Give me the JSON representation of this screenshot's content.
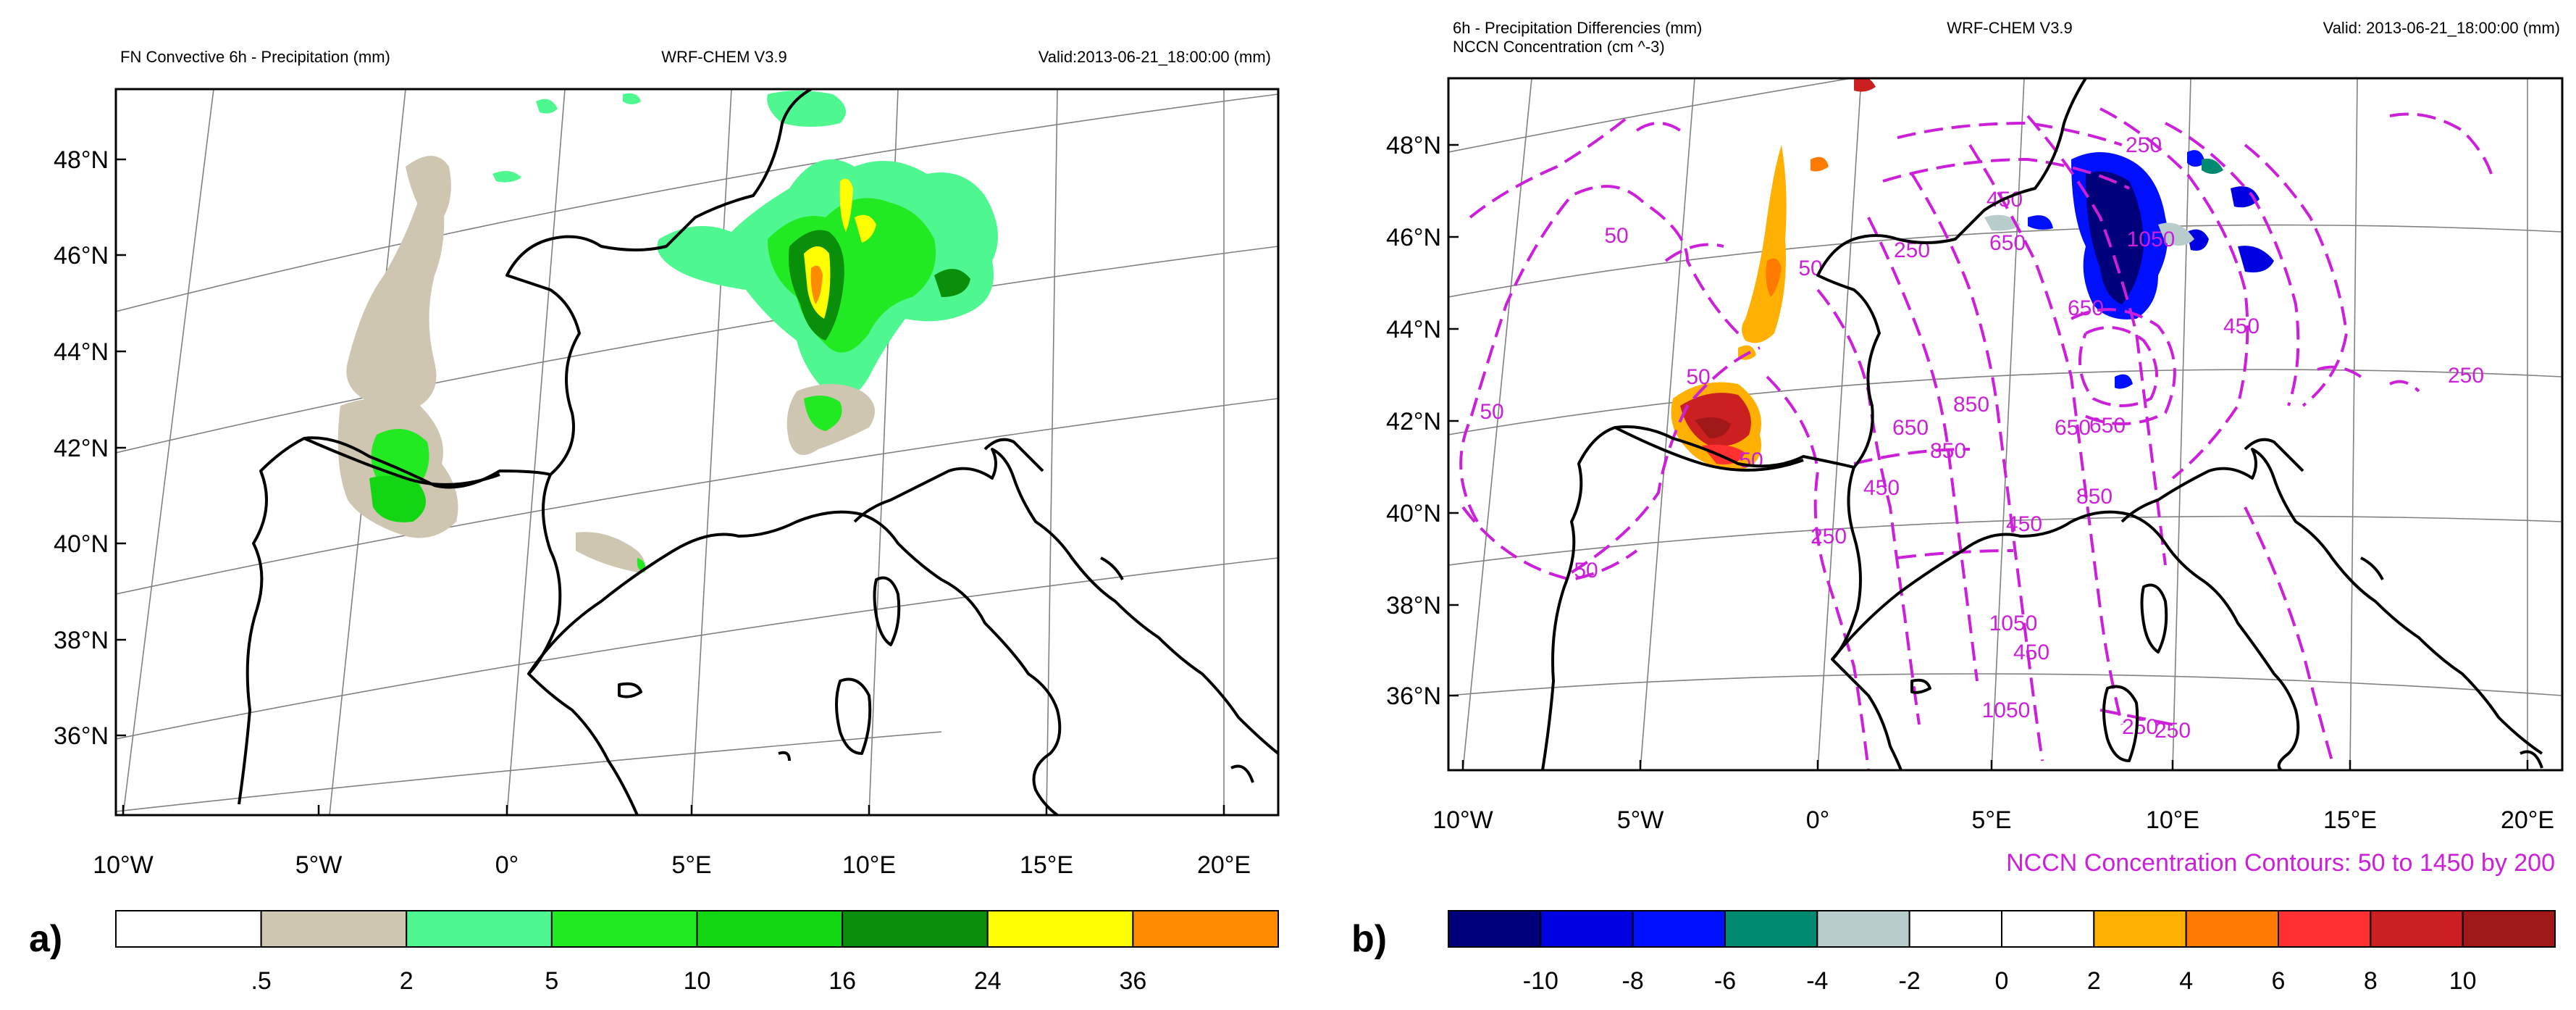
{
  "panel_a": {
    "header_left": "FN Convective 6h - Precipitation (mm)",
    "header_center": "WRF-CHEM V3.9",
    "header_right": "Valid:2013-06-21_18:00:00   (mm)",
    "panel_label": "a)",
    "lat_labels": [
      "48°N",
      "46°N",
      "44°N",
      "42°N",
      "40°N",
      "38°N",
      "36°N"
    ],
    "lon_labels": [
      "10°W",
      "5°W",
      "0°",
      "5°E",
      "10°E",
      "15°E",
      "20°E"
    ],
    "colorbar": {
      "labels": [
        ".5",
        "2",
        "5",
        "10",
        "16",
        "24",
        "36"
      ],
      "colors": [
        "#ffffff",
        "#cfc6b1",
        "#4ef78f",
        "#22ea22",
        "#12d612",
        "#0a8f0a",
        "#ffff00",
        "#ff8c00"
      ]
    }
  },
  "panel_b": {
    "header_left_1": "6h - Precipitation Differencies (mm)",
    "header_left_2": "NCCN Concentration   (cm ^-3)",
    "header_center": "WRF-CHEM V3.9",
    "header_right": "Valid: 2013-06-21_18:00:00   (mm)",
    "panel_label": "b)",
    "lat_labels": [
      "48°N",
      "46°N",
      "44°N",
      "42°N",
      "40°N",
      "38°N",
      "36°N"
    ],
    "lon_labels": [
      "10°W",
      "5°W",
      "0°",
      "5°E",
      "10°E",
      "15°E",
      "20°E"
    ],
    "contour_note": "NCCN Concentration Contours: 50 to 1450 by 200",
    "contour_labels": [
      "50",
      "50",
      "50",
      "50",
      "50",
      "50",
      "250",
      "250",
      "250",
      "250",
      "250",
      "450",
      "450",
      "450",
      "450",
      "650",
      "650",
      "650",
      "650",
      "650",
      "850",
      "850",
      "850",
      "1050",
      "1050",
      "1050",
      "450",
      "250"
    ],
    "colorbar": {
      "labels": [
        "-10",
        "-8",
        "-6",
        "-4",
        "-2",
        "0",
        "2",
        "4",
        "6",
        "8",
        "10"
      ],
      "colors": [
        "#00007a",
        "#0000e0",
        "#0010ff",
        "#008a70",
        "#b9cccc",
        "#ffffff",
        "#ffffff",
        "#ffb000",
        "#ff7a00",
        "#ff3030",
        "#cc2020",
        "#a01818"
      ]
    }
  },
  "colors": {
    "contour": "#cc1fd9",
    "coast": "#000000",
    "grid": "#808080"
  }
}
